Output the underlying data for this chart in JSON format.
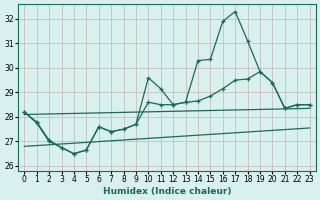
{
  "xlabel": "Humidex (Indice chaleur)",
  "bg_color": "#d8f0ee",
  "grid_color": "#c8b4b4",
  "line_color": "#1a6b5a",
  "xlim": [
    -0.5,
    23.5
  ],
  "ylim": [
    25.8,
    32.6
  ],
  "yticks": [
    26,
    27,
    28,
    29,
    30,
    31,
    32
  ],
  "xticks": [
    0,
    1,
    2,
    3,
    4,
    5,
    6,
    7,
    8,
    9,
    10,
    11,
    12,
    13,
    14,
    15,
    16,
    17,
    18,
    19,
    20,
    21,
    22,
    23
  ],
  "upper_zigzag_x": [
    0,
    1,
    2,
    3,
    4,
    5,
    6,
    7,
    8,
    9,
    10,
    11,
    12,
    13,
    14,
    15,
    16,
    17,
    18,
    19,
    20,
    21,
    22,
    23
  ],
  "upper_zigzag_y": [
    28.2,
    27.8,
    27.05,
    26.75,
    26.5,
    26.65,
    27.6,
    27.4,
    27.5,
    27.7,
    29.6,
    29.15,
    28.5,
    28.6,
    30.3,
    30.35,
    31.9,
    32.3,
    31.1,
    29.85,
    29.4,
    28.35,
    28.5,
    28.5
  ],
  "lower_zigzag_x": [
    0,
    1,
    2,
    3,
    4,
    5,
    6,
    7,
    8,
    9,
    10,
    11,
    12,
    13,
    14,
    15,
    16,
    17,
    18,
    19,
    20,
    21,
    22,
    23
  ],
  "lower_zigzag_y": [
    28.2,
    27.75,
    27.0,
    26.75,
    26.5,
    26.65,
    27.6,
    27.4,
    27.5,
    27.7,
    28.6,
    28.5,
    28.5,
    28.6,
    28.65,
    28.85,
    29.15,
    29.5,
    29.55,
    29.85,
    29.4,
    28.35,
    28.5,
    28.5
  ],
  "upper_trend_x": [
    0,
    23
  ],
  "upper_trend_y": [
    28.1,
    28.35
  ],
  "lower_trend_x": [
    0,
    23
  ],
  "lower_trend_y": [
    26.8,
    27.55
  ]
}
